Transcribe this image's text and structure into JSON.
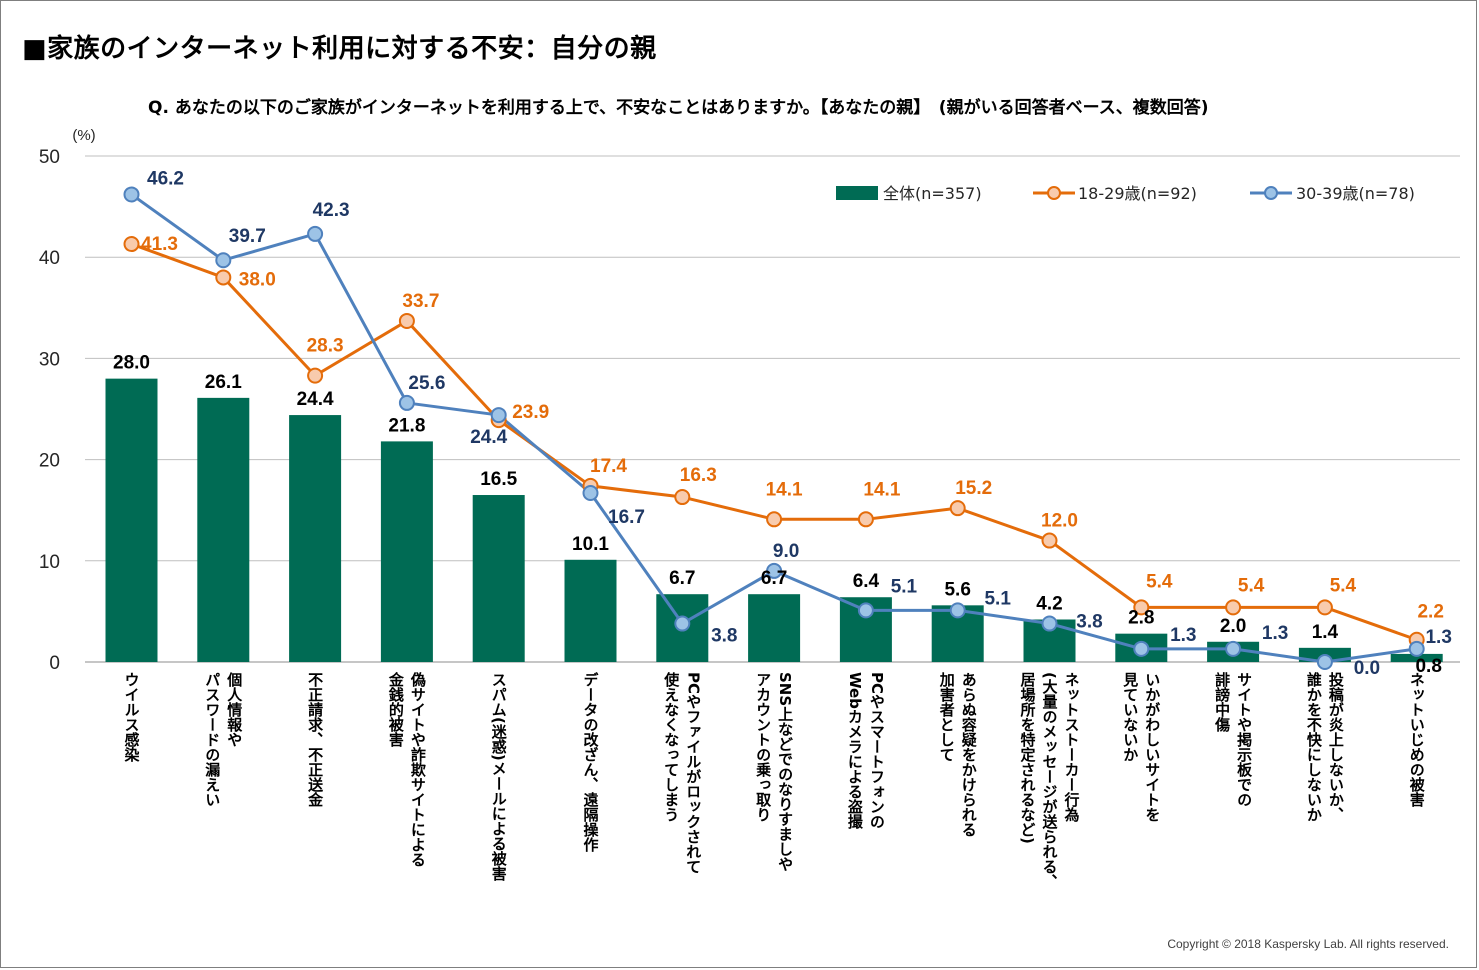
{
  "title": "■家族のインターネット利用に対する不安：自分の親",
  "subtitle": "Q. あなたの以下のご家族がインターネットを利用する上で、不安なことはありますか。【あなたの親】　(親がいる回答者ベース、複数回答)",
  "copyright": "Copyright © 2018 Kaspersky Lab. All rights reserved.",
  "chart_data": {
    "type": "bar",
    "title": "■家族のインターネット利用に対する不安：自分の親",
    "ylabel": "(%)",
    "ylim": [
      0,
      50
    ],
    "yticks": [
      0,
      10,
      20,
      30,
      40,
      50
    ],
    "grid": true,
    "legend_position": "top-right",
    "categories": [
      "ウイルス感染",
      "個人情報やパスワードの漏えい",
      "不正請求、不正送金",
      "偽サイトや詐欺サイトによる金銭的被害",
      "スパム(迷惑)メールによる被害",
      "データの改ざん、遠隔操作",
      "PCやファイルがロックされて使えなくなってしまう",
      "SNS上などでのなりすましやアカウントの乗っ取り",
      "PCやスマートフォンのWebカメラによる盗撮",
      "あらぬ容疑をかけられる加害者として",
      "ネットストーカー行為(大量のメッセージが送られる、居場所を特定されるなど)",
      "いかがわしいサイトを見ていないか",
      "サイトや掲示板での誹謗中傷",
      "投稿が炎上しないか、誰かを不快にしないか",
      "ネットいじめの被害"
    ],
    "category_lines": [
      [
        "ウイルス感染"
      ],
      [
        "個人情報や",
        "パスワードの漏えい"
      ],
      [
        "不正請求、不正送金"
      ],
      [
        "偽サイトや詐欺サイトによる",
        "金銭的被害"
      ],
      [
        "スパム(迷惑)メールによる被害"
      ],
      [
        "データの改ざん、遠隔操作"
      ],
      [
        "PCやファイルがロックされて",
        "使えなくなってしまう"
      ],
      [
        "SNS上などでのなりすましや",
        "アカウントの乗っ取り"
      ],
      [
        "PCやスマートフォンの",
        "Webカメラによる盗撮"
      ],
      [
        "あらぬ容疑をかけられる",
        "加害者として"
      ],
      [
        "ネットストーカー行為",
        "(大量のメッセージが送られる、",
        "居場所を特定されるなど)"
      ],
      [
        "いかがわしいサイトを",
        "見ていないか"
      ],
      [
        "サイトや掲示板での",
        "誹謗中傷"
      ],
      [
        "投稿が炎上しないか、",
        "誰かを不快にしないか"
      ],
      [
        "ネットいじめの被害"
      ]
    ],
    "series": [
      {
        "name": "全体(n=357)",
        "kind": "bar",
        "color": "#006b54",
        "values": [
          28.0,
          26.1,
          24.4,
          21.8,
          16.5,
          10.1,
          6.7,
          6.7,
          6.4,
          5.6,
          4.2,
          2.8,
          2.0,
          1.4,
          0.8
        ]
      },
      {
        "name": "18-29歳(n=92)",
        "kind": "line",
        "color": "#e46c0a",
        "marker_fill": "#f8cbad",
        "values": [
          41.3,
          38.0,
          28.3,
          33.7,
          23.9,
          17.4,
          16.3,
          14.1,
          14.1,
          15.2,
          12.0,
          5.4,
          5.4,
          5.4,
          2.2
        ]
      },
      {
        "name": "30-39歳(n=78)",
        "kind": "line",
        "color": "#4f81bd",
        "marker_fill": "#9dc3e6",
        "label_color": "#1f3864",
        "values": [
          46.2,
          39.7,
          42.3,
          25.6,
          24.4,
          16.7,
          3.8,
          9.0,
          5.1,
          5.1,
          3.8,
          1.3,
          1.3,
          0.0,
          1.3
        ]
      }
    ]
  }
}
